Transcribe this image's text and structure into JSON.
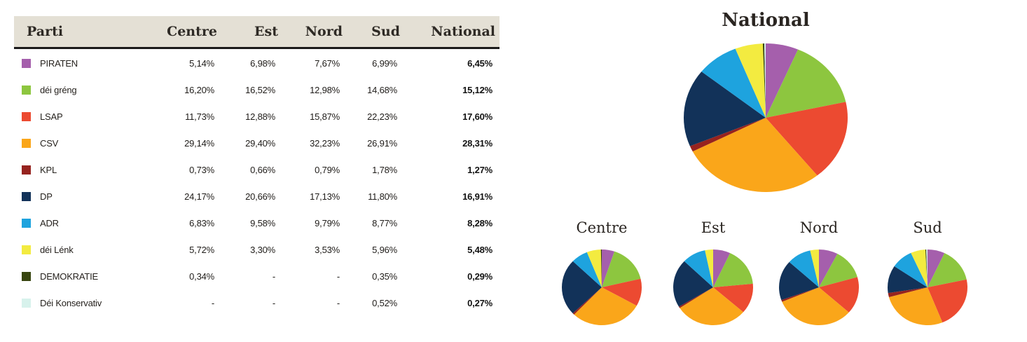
{
  "table": {
    "columns": [
      "Parti",
      "Centre",
      "Est",
      "Nord",
      "Sud",
      "National"
    ],
    "rows": [
      {
        "party": "PIRATEN",
        "color": "#A55FAC",
        "values": [
          "5,14%",
          "6,98%",
          "7,67%",
          "6,99%",
          "6,45%"
        ]
      },
      {
        "party": "déi gréng",
        "color": "#8DC63F",
        "values": [
          "16,20%",
          "16,52%",
          "12,98%",
          "14,68%",
          "15,12%"
        ]
      },
      {
        "party": "LSAP",
        "color": "#EC4A31",
        "values": [
          "11,73%",
          "12,88%",
          "15,87%",
          "22,23%",
          "17,60%"
        ]
      },
      {
        "party": "CSV",
        "color": "#FAA61A",
        "values": [
          "29,14%",
          "29,40%",
          "32,23%",
          "26,91%",
          "28,31%"
        ]
      },
      {
        "party": "KPL",
        "color": "#96231F",
        "values": [
          "0,73%",
          "0,66%",
          "0,79%",
          "1,78%",
          "1,27%"
        ]
      },
      {
        "party": "DP",
        "color": "#123259",
        "values": [
          "24,17%",
          "20,66%",
          "17,13%",
          "11,80%",
          "16,91%"
        ]
      },
      {
        "party": "ADR",
        "color": "#1EA3DE",
        "values": [
          "6,83%",
          "9,58%",
          "9,79%",
          "8,77%",
          "8,28%"
        ]
      },
      {
        "party": "déi Lénk",
        "color": "#F3EB40",
        "values": [
          "5,72%",
          "3,30%",
          "3,53%",
          "5,96%",
          "5,48%"
        ]
      },
      {
        "party": "DEMOKRATIE",
        "color": "#384510",
        "values": [
          "0,34%",
          "-",
          "-",
          "0,35%",
          "0,29%"
        ]
      },
      {
        "party": "Déi Konservativ",
        "color": "#D7F2EC",
        "values": [
          "-",
          "-",
          "-",
          "0,52%",
          "0,27%"
        ]
      }
    ]
  },
  "chart_data": {
    "type": "pie",
    "labels": [
      "PIRATEN",
      "déi gréng",
      "LSAP",
      "CSV",
      "KPL",
      "DP",
      "ADR",
      "déi Lénk",
      "DEMOKRATIE",
      "Déi Konservativ"
    ],
    "colors": [
      "#A55FAC",
      "#8DC63F",
      "#EC4A31",
      "#FAA61A",
      "#96231F",
      "#123259",
      "#1EA3DE",
      "#F3EB40",
      "#384510",
      "#D7F2EC"
    ],
    "start_angle": "12 o'clock",
    "direction": "clockwise",
    "legend_position": "table-left",
    "charts": [
      {
        "title": "National",
        "values": [
          6.45,
          15.12,
          17.6,
          28.31,
          1.27,
          16.91,
          8.28,
          5.48,
          0.29,
          0.27
        ]
      },
      {
        "title": "Centre",
        "values": [
          5.14,
          16.2,
          11.73,
          29.14,
          0.73,
          24.17,
          6.83,
          5.72,
          0.34,
          0
        ]
      },
      {
        "title": "Est",
        "values": [
          6.98,
          16.52,
          12.88,
          29.4,
          0.66,
          20.66,
          9.58,
          3.3,
          0,
          0
        ]
      },
      {
        "title": "Nord",
        "values": [
          7.67,
          12.98,
          15.87,
          32.23,
          0.79,
          17.13,
          9.79,
          3.53,
          0,
          0
        ]
      },
      {
        "title": "Sud",
        "values": [
          6.99,
          14.68,
          22.23,
          26.91,
          1.78,
          11.8,
          8.77,
          5.96,
          0.35,
          0.52
        ]
      }
    ]
  }
}
